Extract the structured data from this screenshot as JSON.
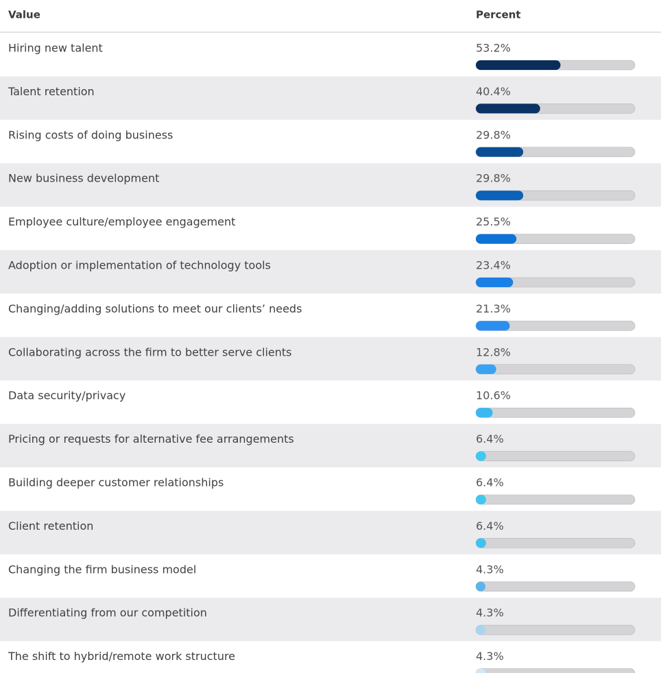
{
  "chart_data": {
    "type": "bar",
    "orientation": "horizontal",
    "columns": [
      "Value",
      "Percent"
    ],
    "categories": [
      "Hiring new talent",
      "Talent retention",
      "Rising costs of doing business",
      "New business development",
      "Employee culture/employee engagement",
      "Adoption or implementation of technology tools",
      "Changing/adding solutions to meet our clients’ needs",
      "Collaborating across the firm to better serve clients",
      "Data security/privacy",
      "Pricing or requests for alternative fee arrangements",
      "Building deeper customer relationships",
      "Client retention",
      "Changing the firm business model",
      "Differentiating from our competition",
      "The shift to hybrid/remote work structure"
    ],
    "values": [
      53.2,
      40.4,
      29.8,
      29.8,
      25.5,
      23.4,
      21.3,
      12.8,
      10.6,
      6.4,
      6.4,
      6.4,
      4.3,
      4.3,
      4.3
    ],
    "value_labels": [
      "53.2%",
      "40.4%",
      "29.8%",
      "29.8%",
      "25.5%",
      "23.4%",
      "21.3%",
      "12.8%",
      "10.6%",
      "6.4%",
      "6.4%",
      "6.4%",
      "4.3%",
      "4.3%",
      "4.3%"
    ],
    "colors": [
      "#0a2d5a",
      "#0b3365",
      "#0a4f96",
      "#0b62b8",
      "#0f72d6",
      "#1a80e6",
      "#2b8ef0",
      "#3aa2f2",
      "#3ab8f2",
      "#40c8f0",
      "#40c8f0",
      "#40c2ee",
      "#5cb4ea",
      "#a8d6f0",
      "#d2e8f8"
    ],
    "xlim": [
      0,
      100
    ]
  }
}
